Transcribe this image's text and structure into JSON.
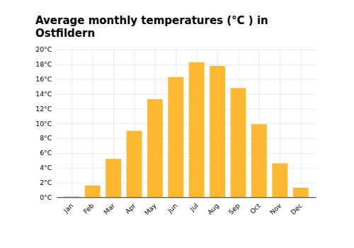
{
  "chart_data": {
    "type": "bar",
    "title": "Average monthly temperatures (°C ) in Ostfildern",
    "categories": [
      "Jan",
      "Feb",
      "Mar",
      "Apr",
      "May",
      "Jun",
      "Jul",
      "Aug",
      "Sep",
      "Oct",
      "Nov",
      "Dec"
    ],
    "values": [
      0.1,
      1.6,
      5.2,
      9.0,
      13.3,
      16.3,
      18.3,
      17.8,
      14.8,
      9.9,
      4.6,
      1.3
    ],
    "color": "#FDB731",
    "ylim": [
      0,
      20
    ],
    "yticks": [
      {
        "value": 0,
        "label": "0°C"
      },
      {
        "value": 2,
        "label": "2°C"
      },
      {
        "value": 4,
        "label": "4°C"
      },
      {
        "value": 6,
        "label": "6°C"
      },
      {
        "value": 8,
        "label": "8°C"
      },
      {
        "value": 10,
        "label": "10°C"
      },
      {
        "value": 12,
        "label": "12°C"
      },
      {
        "value": 14,
        "label": "14°C"
      },
      {
        "value": 16,
        "label": "16°C"
      },
      {
        "value": 18,
        "label": "18°C"
      },
      {
        "value": 20,
        "label": "20°C"
      }
    ],
    "grid": true
  }
}
